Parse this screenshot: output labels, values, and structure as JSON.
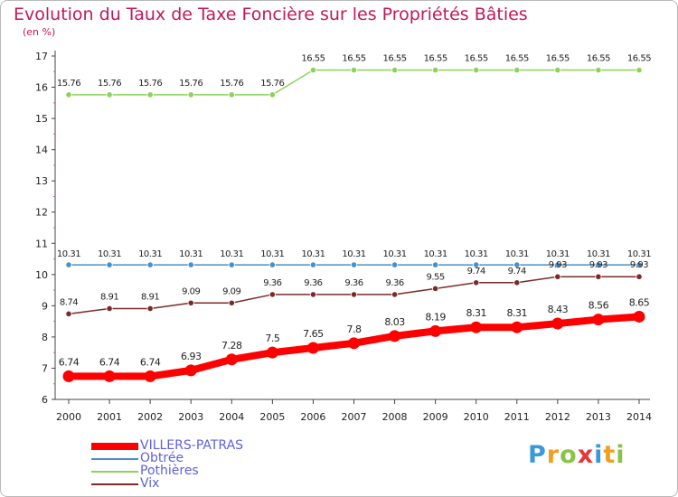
{
  "chart_data": {
    "type": "line",
    "title": "Evolution du Taux de Taxe Foncière sur les Propriétés Bâties",
    "unit_label": "(en %)",
    "x": [
      "2000",
      "2001",
      "2002",
      "2003",
      "2004",
      "2005",
      "2006",
      "2007",
      "2008",
      "2009",
      "2010",
      "2011",
      "2012",
      "2013",
      "2014"
    ],
    "ylim": [
      6,
      17
    ],
    "yticks": [
      6,
      7,
      8,
      9,
      10,
      11,
      12,
      13,
      14,
      15,
      16,
      17
    ],
    "grid": false,
    "legend_position": "bottom-left",
    "series": [
      {
        "name": "VILLERS-PATRAS",
        "color": "#ff0000",
        "values": [
          6.74,
          6.74,
          6.74,
          6.93,
          7.28,
          7.5,
          7.65,
          7.8,
          8.03,
          8.19,
          8.31,
          8.31,
          8.43,
          8.56,
          8.65
        ],
        "labels": [
          "6.74",
          "6.74",
          "6.74",
          "6.93",
          "7.28",
          "7.5",
          "7.65",
          "7.8",
          "8.03",
          "8.19",
          "8.31",
          "8.31",
          "8.43",
          "8.56",
          "8.65"
        ]
      },
      {
        "name": "Obtrée",
        "color": "#4a90c8",
        "values": [
          10.31,
          10.31,
          10.31,
          10.31,
          10.31,
          10.31,
          10.31,
          10.31,
          10.31,
          10.31,
          10.31,
          10.31,
          10.31,
          10.31,
          10.31
        ],
        "labels": [
          "10.31",
          "10.31",
          "10.31",
          "10.31",
          "10.31",
          "10.31",
          "10.31",
          "10.31",
          "10.31",
          "10.31",
          "10.31",
          "10.31",
          "10.31",
          "10.31",
          "10.31"
        ]
      },
      {
        "name": "Pothières",
        "color": "#8bd35a",
        "values": [
          15.76,
          15.76,
          15.76,
          15.76,
          15.76,
          15.76,
          16.55,
          16.55,
          16.55,
          16.55,
          16.55,
          16.55,
          16.55,
          16.55,
          16.55
        ],
        "labels": [
          "15.76",
          "15.76",
          "15.76",
          "15.76",
          "15.76",
          "15.76",
          "16.55",
          "16.55",
          "16.55",
          "16.55",
          "16.55",
          "16.55",
          "16.55",
          "16.55",
          "16.55"
        ]
      },
      {
        "name": "Vix",
        "color": "#7b2a2a",
        "values": [
          8.74,
          8.91,
          8.91,
          9.09,
          9.09,
          9.36,
          9.36,
          9.36,
          9.36,
          9.55,
          9.74,
          9.74,
          9.93,
          9.93,
          9.93
        ],
        "labels": [
          "8.74",
          "8.91",
          "8.91",
          "9.09",
          "9.09",
          "9.36",
          "9.36",
          "9.36",
          "9.36",
          "9.55",
          "9.74",
          "9.74",
          "9.93",
          "9.93",
          "9.93"
        ]
      }
    ]
  },
  "logo": {
    "letters": [
      {
        "ch": "P",
        "color": "#3a9ad9"
      },
      {
        "ch": "r",
        "color": "#f0a020"
      },
      {
        "ch": "o",
        "color": "#8bc34a"
      },
      {
        "ch": "x",
        "color": "#e53935"
      },
      {
        "ch": "i",
        "color": "#3a9ad9"
      },
      {
        "ch": "t",
        "color": "#f0a020"
      },
      {
        "ch": "i",
        "color": "#8bc34a"
      }
    ]
  }
}
